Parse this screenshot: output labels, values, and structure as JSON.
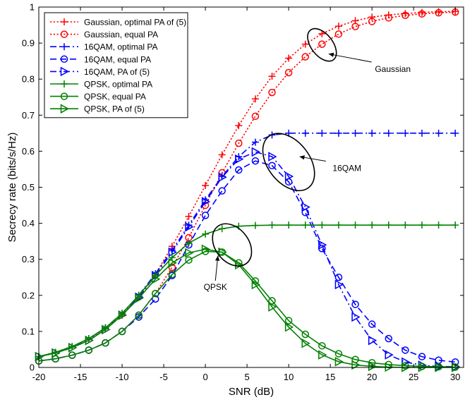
{
  "chart_data": {
    "type": "line",
    "xlabel": "SNR (dB)",
    "ylabel": "Secrecy rate (bits/s/Hz)",
    "xlim": [
      -20,
      31
    ],
    "ylim": [
      0,
      1
    ],
    "xticks": [
      -20,
      -15,
      -10,
      -5,
      0,
      5,
      10,
      15,
      20,
      25,
      30
    ],
    "yticks": [
      0,
      0.1,
      0.2,
      0.3,
      0.4,
      0.5,
      0.6,
      0.7,
      0.8,
      0.9,
      1
    ],
    "xtick_labels": [
      "-20",
      "-15",
      "-10",
      "-5",
      "0",
      "5",
      "10",
      "15",
      "20",
      "25",
      "30"
    ],
    "ytick_labels": [
      "0",
      "0.1",
      "0.2",
      "0.3",
      "0.4",
      "0.5",
      "0.6",
      "0.7",
      "0.8",
      "0.9",
      "1"
    ],
    "grid": false,
    "legend_position": "top-left",
    "x": [
      -20,
      -18,
      -16,
      -14,
      -12,
      -10,
      -8,
      -6,
      -4,
      -2,
      0,
      2,
      4,
      6,
      8,
      10,
      12,
      14,
      16,
      18,
      20,
      22,
      24,
      26,
      28,
      30
    ],
    "series": [
      {
        "name": "Gaussian, optimal PA of (5)",
        "color": "#ff0000",
        "dash": "dotted",
        "marker": "plus",
        "values": [
          0.03,
          0.042,
          0.058,
          0.079,
          0.107,
          0.145,
          0.195,
          0.259,
          0.336,
          0.419,
          0.505,
          0.59,
          0.671,
          0.745,
          0.808,
          0.858,
          0.897,
          0.926,
          0.947,
          0.962,
          0.972,
          0.978,
          0.982,
          0.985,
          0.987,
          0.988
        ]
      },
      {
        "name": "Gaussian, equal PA",
        "color": "#ff0000",
        "dash": "dotted",
        "marker": "circle",
        "values": [
          0.018,
          0.024,
          0.034,
          0.048,
          0.068,
          0.1,
          0.145,
          0.205,
          0.278,
          0.36,
          0.45,
          0.54,
          0.622,
          0.697,
          0.763,
          0.818,
          0.862,
          0.897,
          0.925,
          0.946,
          0.96,
          0.97,
          0.977,
          0.981,
          0.984,
          0.986
        ]
      },
      {
        "name": "16QAM, optimal PA",
        "color": "#0000ff",
        "dash": "dashdot",
        "marker": "plus",
        "values": [
          0.03,
          0.042,
          0.058,
          0.08,
          0.11,
          0.15,
          0.2,
          0.26,
          0.325,
          0.395,
          0.465,
          0.53,
          0.585,
          0.625,
          0.645,
          0.65,
          0.65,
          0.65,
          0.65,
          0.65,
          0.65,
          0.65,
          0.65,
          0.65,
          0.65,
          0.65
        ]
      },
      {
        "name": "16QAM, equal PA",
        "color": "#0000ff",
        "dash": "dashed",
        "marker": "circle",
        "values": [
          0.018,
          0.024,
          0.034,
          0.048,
          0.068,
          0.1,
          0.14,
          0.19,
          0.255,
          0.34,
          0.422,
          0.49,
          0.548,
          0.573,
          0.56,
          0.515,
          0.43,
          0.33,
          0.25,
          0.175,
          0.12,
          0.08,
          0.048,
          0.03,
          0.02,
          0.015
        ]
      },
      {
        "name": "16QAM, PA of (5)",
        "color": "#0000ff",
        "dash": "dashdot",
        "marker": "triangle-right",
        "values": [
          0.03,
          0.04,
          0.055,
          0.075,
          0.105,
          0.145,
          0.195,
          0.255,
          0.32,
          0.39,
          0.46,
          0.528,
          0.578,
          0.598,
          0.585,
          0.53,
          0.445,
          0.34,
          0.23,
          0.14,
          0.075,
          0.035,
          0.015,
          0.006,
          0.003,
          0.002
        ]
      },
      {
        "name": "QPSK, optimal PA",
        "color": "#008000",
        "dash": "solid",
        "marker": "plus",
        "values": [
          0.03,
          0.042,
          0.058,
          0.08,
          0.11,
          0.15,
          0.2,
          0.255,
          0.305,
          0.345,
          0.37,
          0.385,
          0.392,
          0.394,
          0.395,
          0.395,
          0.395,
          0.395,
          0.395,
          0.395,
          0.395,
          0.395,
          0.395,
          0.395,
          0.395,
          0.395
        ]
      },
      {
        "name": "QPSK, equal PA",
        "color": "#008000",
        "dash": "solid",
        "marker": "circle",
        "values": [
          0.018,
          0.024,
          0.034,
          0.048,
          0.068,
          0.1,
          0.145,
          0.205,
          0.258,
          0.298,
          0.322,
          0.32,
          0.29,
          0.24,
          0.185,
          0.13,
          0.092,
          0.06,
          0.038,
          0.022,
          0.013,
          0.008,
          0.005,
          0.003,
          0.002,
          0.001
        ]
      },
      {
        "name": "QPSK, PA of (5)",
        "color": "#008000",
        "dash": "solid",
        "marker": "triangle-right",
        "values": [
          0.03,
          0.04,
          0.055,
          0.075,
          0.105,
          0.145,
          0.192,
          0.245,
          0.29,
          0.318,
          0.328,
          0.32,
          0.285,
          0.23,
          0.168,
          0.112,
          0.067,
          0.035,
          0.016,
          0.007,
          0.003,
          0.001,
          0.0,
          0.0,
          0.0,
          0.0
        ]
      }
    ],
    "annotations": [
      {
        "text": "Gaussian",
        "ellipse_center": [
          14,
          0.895
        ],
        "ellipse_radii": [
          1.3,
          0.052
        ],
        "text_at": [
          22.5,
          0.82
        ],
        "arrow_to": [
          14.8,
          0.87
        ]
      },
      {
        "text": "16QAM",
        "ellipse_center": [
          10,
          0.57
        ],
        "ellipse_radii": [
          2.5,
          0.09
        ],
        "text_at": [
          17,
          0.545
        ],
        "arrow_to": [
          11.3,
          0.585
        ]
      },
      {
        "text": "QPSK",
        "ellipse_center": [
          3.2,
          0.34
        ],
        "ellipse_radii": [
          2.0,
          0.065
        ],
        "text_at": [
          1.2,
          0.215
        ],
        "arrow_to": [
          1.5,
          0.31
        ]
      }
    ]
  }
}
